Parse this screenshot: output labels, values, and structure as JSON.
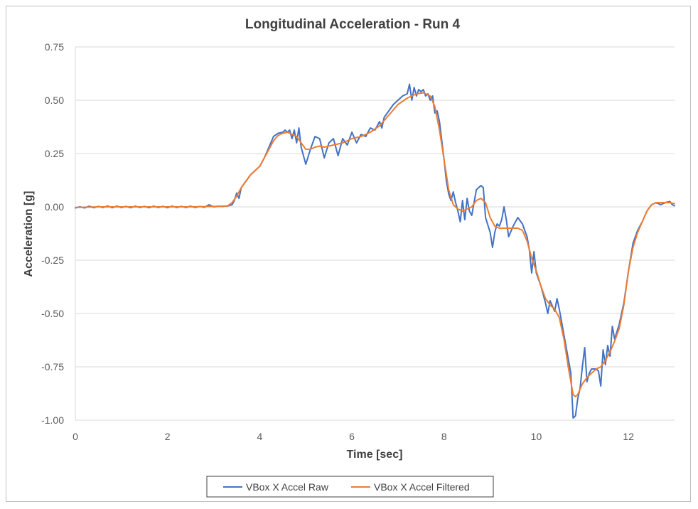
{
  "chart_data": {
    "type": "line",
    "title": "Longitudinal Acceleration - Run 4",
    "xlabel": "Time [sec]",
    "ylabel": "Acceleration [g]",
    "xlim": [
      0,
      13
    ],
    "ylim": [
      -1.0,
      0.75
    ],
    "x_ticks": [
      0,
      2,
      4,
      6,
      8,
      10,
      12
    ],
    "x_tick_labels": [
      "0",
      "2",
      "4",
      "6",
      "8",
      "10",
      "12"
    ],
    "y_ticks": [
      0.75,
      0.5,
      0.25,
      0.0,
      -0.25,
      -0.5,
      -0.75,
      -1.0
    ],
    "y_tick_labels": [
      "0.75",
      "0.50",
      "0.25",
      "0.00",
      "-0.25",
      "-0.50",
      "-0.75",
      "-1.00"
    ],
    "grid": "horizontal",
    "legend_position": "bottom",
    "series": [
      {
        "name": "VBox X Accel Raw",
        "color": "#4472c4",
        "points": [
          [
            0.0,
            -0.005
          ],
          [
            0.1,
            0.0
          ],
          [
            0.2,
            -0.005
          ],
          [
            0.3,
            0.003
          ],
          [
            0.4,
            -0.004
          ],
          [
            0.5,
            0.002
          ],
          [
            0.6,
            -0.003
          ],
          [
            0.7,
            0.004
          ],
          [
            0.8,
            -0.004
          ],
          [
            0.9,
            0.003
          ],
          [
            1.0,
            -0.003
          ],
          [
            1.1,
            0.002
          ],
          [
            1.2,
            -0.004
          ],
          [
            1.3,
            0.003
          ],
          [
            1.4,
            -0.003
          ],
          [
            1.5,
            0.002
          ],
          [
            1.6,
            -0.004
          ],
          [
            1.7,
            0.003
          ],
          [
            1.8,
            -0.003
          ],
          [
            1.9,
            0.002
          ],
          [
            2.0,
            -0.004
          ],
          [
            2.1,
            0.003
          ],
          [
            2.2,
            -0.003
          ],
          [
            2.3,
            0.002
          ],
          [
            2.4,
            -0.003
          ],
          [
            2.5,
            0.003
          ],
          [
            2.6,
            -0.003
          ],
          [
            2.7,
            0.002
          ],
          [
            2.8,
            -0.002
          ],
          [
            2.9,
            0.01
          ],
          [
            3.0,
            0.0
          ],
          [
            3.1,
            0.003
          ],
          [
            3.2,
            0.002
          ],
          [
            3.3,
            0.004
          ],
          [
            3.4,
            0.01
          ],
          [
            3.45,
            0.03
          ],
          [
            3.5,
            0.065
          ],
          [
            3.55,
            0.04
          ],
          [
            3.6,
            0.09
          ],
          [
            3.7,
            0.12
          ],
          [
            3.8,
            0.15
          ],
          [
            3.9,
            0.17
          ],
          [
            4.0,
            0.19
          ],
          [
            4.1,
            0.23
          ],
          [
            4.2,
            0.28
          ],
          [
            4.3,
            0.33
          ],
          [
            4.4,
            0.345
          ],
          [
            4.5,
            0.35
          ],
          [
            4.55,
            0.36
          ],
          [
            4.6,
            0.35
          ],
          [
            4.65,
            0.36
          ],
          [
            4.7,
            0.32
          ],
          [
            4.75,
            0.36
          ],
          [
            4.8,
            0.3
          ],
          [
            4.85,
            0.37
          ],
          [
            4.9,
            0.28
          ],
          [
            5.0,
            0.2
          ],
          [
            5.1,
            0.27
          ],
          [
            5.2,
            0.33
          ],
          [
            5.3,
            0.32
          ],
          [
            5.4,
            0.23
          ],
          [
            5.5,
            0.3
          ],
          [
            5.6,
            0.32
          ],
          [
            5.7,
            0.24
          ],
          [
            5.8,
            0.32
          ],
          [
            5.9,
            0.29
          ],
          [
            6.0,
            0.35
          ],
          [
            6.1,
            0.3
          ],
          [
            6.2,
            0.34
          ],
          [
            6.3,
            0.33
          ],
          [
            6.4,
            0.37
          ],
          [
            6.5,
            0.36
          ],
          [
            6.6,
            0.4
          ],
          [
            6.65,
            0.37
          ],
          [
            6.7,
            0.42
          ],
          [
            6.8,
            0.45
          ],
          [
            6.9,
            0.48
          ],
          [
            7.0,
            0.5
          ],
          [
            7.1,
            0.52
          ],
          [
            7.2,
            0.53
          ],
          [
            7.25,
            0.575
          ],
          [
            7.3,
            0.5
          ],
          [
            7.35,
            0.56
          ],
          [
            7.4,
            0.52
          ],
          [
            7.45,
            0.55
          ],
          [
            7.5,
            0.54
          ],
          [
            7.55,
            0.55
          ],
          [
            7.6,
            0.52
          ],
          [
            7.65,
            0.53
          ],
          [
            7.7,
            0.5
          ],
          [
            7.75,
            0.52
          ],
          [
            7.8,
            0.44
          ],
          [
            7.85,
            0.45
          ],
          [
            7.9,
            0.4
          ],
          [
            8.0,
            0.22
          ],
          [
            8.05,
            0.12
          ],
          [
            8.1,
            0.06
          ],
          [
            8.15,
            0.03
          ],
          [
            8.2,
            0.07
          ],
          [
            8.25,
            0.02
          ],
          [
            8.3,
            -0.02
          ],
          [
            8.35,
            -0.07
          ],
          [
            8.4,
            0.03
          ],
          [
            8.45,
            -0.06
          ],
          [
            8.5,
            0.04
          ],
          [
            8.55,
            -0.02
          ],
          [
            8.6,
            -0.04
          ],
          [
            8.7,
            0.08
          ],
          [
            8.8,
            0.1
          ],
          [
            8.85,
            0.09
          ],
          [
            8.9,
            -0.05
          ],
          [
            9.0,
            -0.12
          ],
          [
            9.05,
            -0.19
          ],
          [
            9.1,
            -0.12
          ],
          [
            9.15,
            -0.08
          ],
          [
            9.2,
            -0.09
          ],
          [
            9.25,
            -0.06
          ],
          [
            9.3,
            0.0
          ],
          [
            9.35,
            -0.06
          ],
          [
            9.4,
            -0.14
          ],
          [
            9.5,
            -0.09
          ],
          [
            9.6,
            -0.05
          ],
          [
            9.7,
            -0.08
          ],
          [
            9.8,
            -0.14
          ],
          [
            9.85,
            -0.2
          ],
          [
            9.9,
            -0.31
          ],
          [
            9.95,
            -0.21
          ],
          [
            10.0,
            -0.31
          ],
          [
            10.1,
            -0.37
          ],
          [
            10.2,
            -0.45
          ],
          [
            10.25,
            -0.5
          ],
          [
            10.3,
            -0.44
          ],
          [
            10.4,
            -0.49
          ],
          [
            10.45,
            -0.43
          ],
          [
            10.5,
            -0.48
          ],
          [
            10.6,
            -0.6
          ],
          [
            10.7,
            -0.72
          ],
          [
            10.75,
            -0.78
          ],
          [
            10.8,
            -0.99
          ],
          [
            10.85,
            -0.98
          ],
          [
            10.9,
            -0.9
          ],
          [
            10.95,
            -0.85
          ],
          [
            11.0,
            -0.75
          ],
          [
            11.05,
            -0.66
          ],
          [
            11.1,
            -0.82
          ],
          [
            11.15,
            -0.78
          ],
          [
            11.2,
            -0.76
          ],
          [
            11.3,
            -0.76
          ],
          [
            11.35,
            -0.77
          ],
          [
            11.4,
            -0.84
          ],
          [
            11.45,
            -0.67
          ],
          [
            11.5,
            -0.74
          ],
          [
            11.55,
            -0.65
          ],
          [
            11.6,
            -0.7
          ],
          [
            11.65,
            -0.56
          ],
          [
            11.7,
            -0.62
          ],
          [
            11.8,
            -0.55
          ],
          [
            11.9,
            -0.45
          ],
          [
            12.0,
            -0.3
          ],
          [
            12.1,
            -0.17
          ],
          [
            12.2,
            -0.11
          ],
          [
            12.3,
            -0.07
          ],
          [
            12.4,
            -0.02
          ],
          [
            12.5,
            0.01
          ],
          [
            12.6,
            0.02
          ],
          [
            12.7,
            0.01
          ],
          [
            12.8,
            0.02
          ],
          [
            12.9,
            0.025
          ],
          [
            12.95,
            0.01
          ],
          [
            13.0,
            0.005
          ]
        ]
      },
      {
        "name": "VBox X Accel Filtered",
        "color": "#ed7d31",
        "points": [
          [
            0.0,
            -0.003
          ],
          [
            0.5,
            0.0
          ],
          [
            1.0,
            0.0
          ],
          [
            1.5,
            0.0
          ],
          [
            2.0,
            0.0
          ],
          [
            2.5,
            0.0
          ],
          [
            3.0,
            0.002
          ],
          [
            3.3,
            0.004
          ],
          [
            3.4,
            0.02
          ],
          [
            3.5,
            0.05
          ],
          [
            3.6,
            0.09
          ],
          [
            3.7,
            0.12
          ],
          [
            3.8,
            0.15
          ],
          [
            3.9,
            0.17
          ],
          [
            4.0,
            0.19
          ],
          [
            4.1,
            0.23
          ],
          [
            4.2,
            0.27
          ],
          [
            4.3,
            0.31
          ],
          [
            4.4,
            0.335
          ],
          [
            4.5,
            0.345
          ],
          [
            4.6,
            0.35
          ],
          [
            4.7,
            0.34
          ],
          [
            4.8,
            0.33
          ],
          [
            4.9,
            0.3
          ],
          [
            5.0,
            0.27
          ],
          [
            5.1,
            0.27
          ],
          [
            5.2,
            0.28
          ],
          [
            5.3,
            0.285
          ],
          [
            5.4,
            0.28
          ],
          [
            5.5,
            0.285
          ],
          [
            5.6,
            0.29
          ],
          [
            5.7,
            0.295
          ],
          [
            5.8,
            0.3
          ],
          [
            5.9,
            0.31
          ],
          [
            6.0,
            0.32
          ],
          [
            6.2,
            0.33
          ],
          [
            6.4,
            0.35
          ],
          [
            6.6,
            0.38
          ],
          [
            6.8,
            0.43
          ],
          [
            7.0,
            0.48
          ],
          [
            7.2,
            0.51
          ],
          [
            7.4,
            0.53
          ],
          [
            7.55,
            0.535
          ],
          [
            7.7,
            0.52
          ],
          [
            7.8,
            0.47
          ],
          [
            7.9,
            0.36
          ],
          [
            8.0,
            0.22
          ],
          [
            8.1,
            0.08
          ],
          [
            8.2,
            0.01
          ],
          [
            8.3,
            -0.01
          ],
          [
            8.4,
            -0.02
          ],
          [
            8.5,
            -0.01
          ],
          [
            8.6,
            0.0
          ],
          [
            8.7,
            0.03
          ],
          [
            8.8,
            0.04
          ],
          [
            8.9,
            0.02
          ],
          [
            9.0,
            -0.05
          ],
          [
            9.1,
            -0.09
          ],
          [
            9.2,
            -0.1
          ],
          [
            9.4,
            -0.1
          ],
          [
            9.6,
            -0.1
          ],
          [
            9.7,
            -0.11
          ],
          [
            9.8,
            -0.16
          ],
          [
            9.9,
            -0.24
          ],
          [
            10.0,
            -0.3
          ],
          [
            10.1,
            -0.37
          ],
          [
            10.2,
            -0.43
          ],
          [
            10.3,
            -0.46
          ],
          [
            10.4,
            -0.48
          ],
          [
            10.5,
            -0.52
          ],
          [
            10.6,
            -0.62
          ],
          [
            10.7,
            -0.76
          ],
          [
            10.8,
            -0.88
          ],
          [
            10.85,
            -0.89
          ],
          [
            10.9,
            -0.88
          ],
          [
            11.0,
            -0.83
          ],
          [
            11.1,
            -0.8
          ],
          [
            11.2,
            -0.78
          ],
          [
            11.3,
            -0.76
          ],
          [
            11.4,
            -0.75
          ],
          [
            11.5,
            -0.72
          ],
          [
            11.6,
            -0.68
          ],
          [
            11.7,
            -0.63
          ],
          [
            11.8,
            -0.57
          ],
          [
            11.9,
            -0.46
          ],
          [
            12.0,
            -0.3
          ],
          [
            12.1,
            -0.19
          ],
          [
            12.2,
            -0.12
          ],
          [
            12.3,
            -0.07
          ],
          [
            12.4,
            -0.02
          ],
          [
            12.5,
            0.01
          ],
          [
            12.6,
            0.02
          ],
          [
            12.8,
            0.02
          ],
          [
            12.9,
            0.02
          ],
          [
            13.0,
            0.015
          ]
        ]
      }
    ]
  }
}
